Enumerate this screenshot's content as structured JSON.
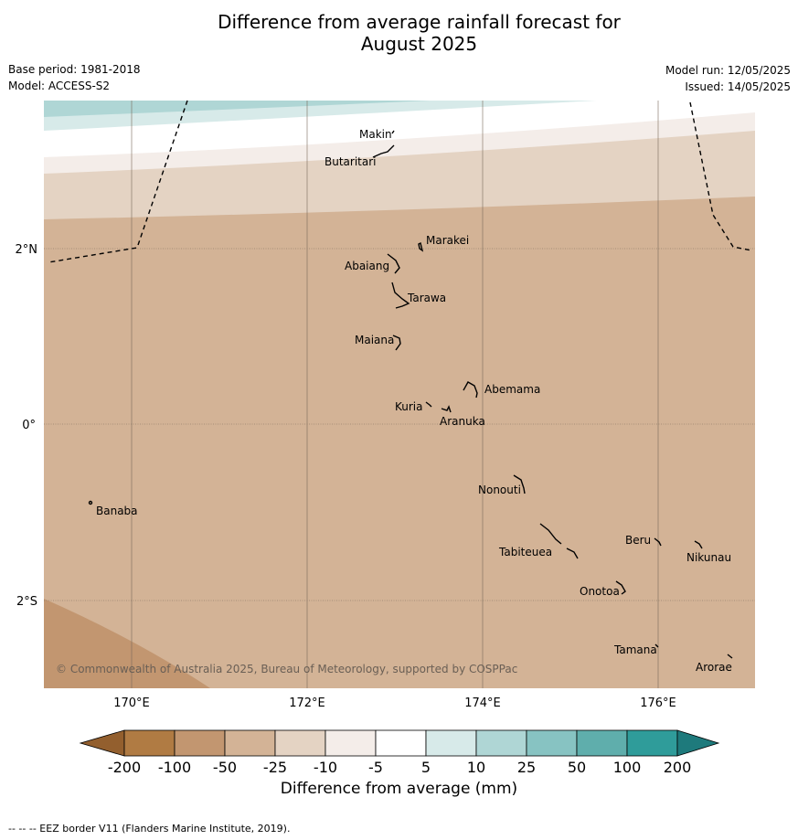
{
  "title_line1": "Difference from average rainfall forecast for",
  "title_line2": "August 2025",
  "base_period": "Base period: 1981-2018",
  "model": "Model: ACCESS-S2",
  "model_run": "Model run: 12/05/2025",
  "issued": "Issued: 14/05/2025",
  "copyright": "© Commonwealth of Australia 2025, Bureau of Meteorology, supported by COSPPac",
  "lat_labels": [
    "2°N",
    "0°",
    "2°S"
  ],
  "lon_labels": [
    "170°E",
    "172°E",
    "174°E",
    "176°E"
  ],
  "places": [
    "Makin",
    "Butaritari",
    "Marakei",
    "Abaiang",
    "Tarawa",
    "Maiana",
    "Abemama",
    "Kuria",
    "Aranuka",
    "Nonouti",
    "Banaba",
    "Beru",
    "Nikunau",
    "Tabiteuea",
    "Onotoa",
    "Tamana",
    "Arorae"
  ],
  "colorbar": {
    "ticks": [
      "-200",
      "-100",
      "-50",
      "-25",
      "-10",
      "-5",
      "5",
      "10",
      "25",
      "50",
      "100",
      "200"
    ],
    "colors": [
      "#935f2e",
      "#b07b43",
      "#c29670",
      "#d3b396",
      "#e4d3c3",
      "#f4ede9",
      "#ffffff",
      "#d7eae9",
      "#afd6d5",
      "#87c3c2",
      "#5faeac",
      "#2f9c9a",
      "#1e7a7c"
    ],
    "label": "Difference from average (mm)"
  },
  "footer": "-- -- -- EEZ border V11 (Flanders Marine Institute, 2019)."
}
